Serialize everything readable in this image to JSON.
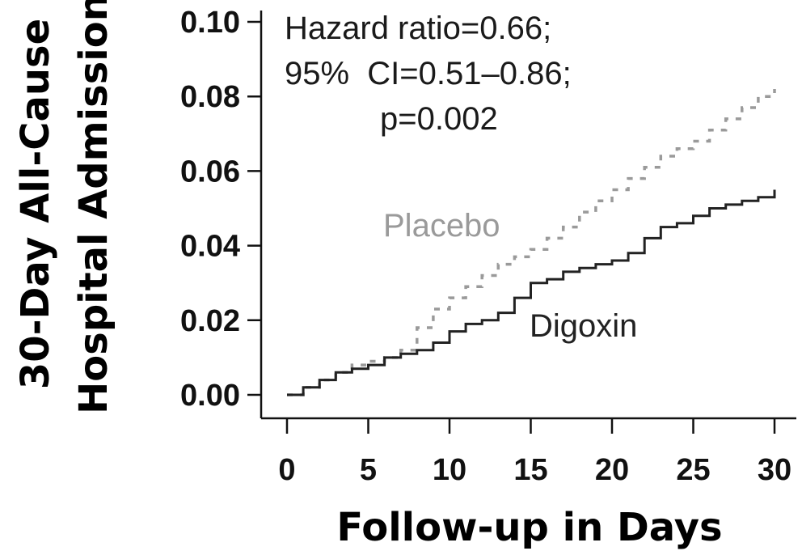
{
  "chart_data": {
    "type": "line",
    "step": true,
    "xlabel": "Follow-up in Days",
    "ylabel": [
      "30-Day All-Cause",
      "Hospital Admission"
    ],
    "xlim": [
      0,
      30
    ],
    "ylim": [
      0,
      0.1
    ],
    "xticks": [
      "0",
      "5",
      "10",
      "15",
      "20",
      "25",
      "30"
    ],
    "yticks": [
      "0.00",
      "0.02",
      "0.04",
      "0.06",
      "0.08",
      "0.10"
    ],
    "grid": false,
    "annotations": [
      "Hazard ratio=0.66;",
      "95%  CI=0.51–0.86;",
      "p=0.002"
    ],
    "series": [
      {
        "name": "Placebo",
        "color": "#9a9a9a",
        "dash": true,
        "x": [
          0,
          1,
          2,
          3,
          4,
          5,
          6,
          7,
          8,
          9,
          10,
          11,
          12,
          13,
          14,
          15,
          16,
          17,
          18,
          19,
          20,
          21,
          22,
          23,
          24,
          25,
          26,
          27,
          28,
          29,
          30
        ],
        "y": [
          0.0,
          0.002,
          0.004,
          0.006,
          0.008,
          0.009,
          0.01,
          0.012,
          0.018,
          0.023,
          0.026,
          0.029,
          0.032,
          0.035,
          0.037,
          0.039,
          0.042,
          0.045,
          0.049,
          0.052,
          0.055,
          0.058,
          0.061,
          0.064,
          0.066,
          0.068,
          0.071,
          0.074,
          0.077,
          0.08,
          0.082
        ]
      },
      {
        "name": "Digoxin",
        "color": "#222222",
        "dash": false,
        "x": [
          0,
          1,
          2,
          3,
          4,
          5,
          6,
          7,
          8,
          9,
          10,
          11,
          12,
          13,
          14,
          15,
          16,
          17,
          18,
          19,
          20,
          21,
          22,
          23,
          24,
          25,
          26,
          27,
          28,
          29,
          30
        ],
        "y": [
          0.0,
          0.002,
          0.004,
          0.006,
          0.007,
          0.008,
          0.01,
          0.011,
          0.012,
          0.014,
          0.017,
          0.019,
          0.02,
          0.022,
          0.026,
          0.03,
          0.031,
          0.033,
          0.034,
          0.035,
          0.036,
          0.038,
          0.042,
          0.045,
          0.046,
          0.048,
          0.05,
          0.051,
          0.052,
          0.053,
          0.055
        ]
      }
    ]
  }
}
